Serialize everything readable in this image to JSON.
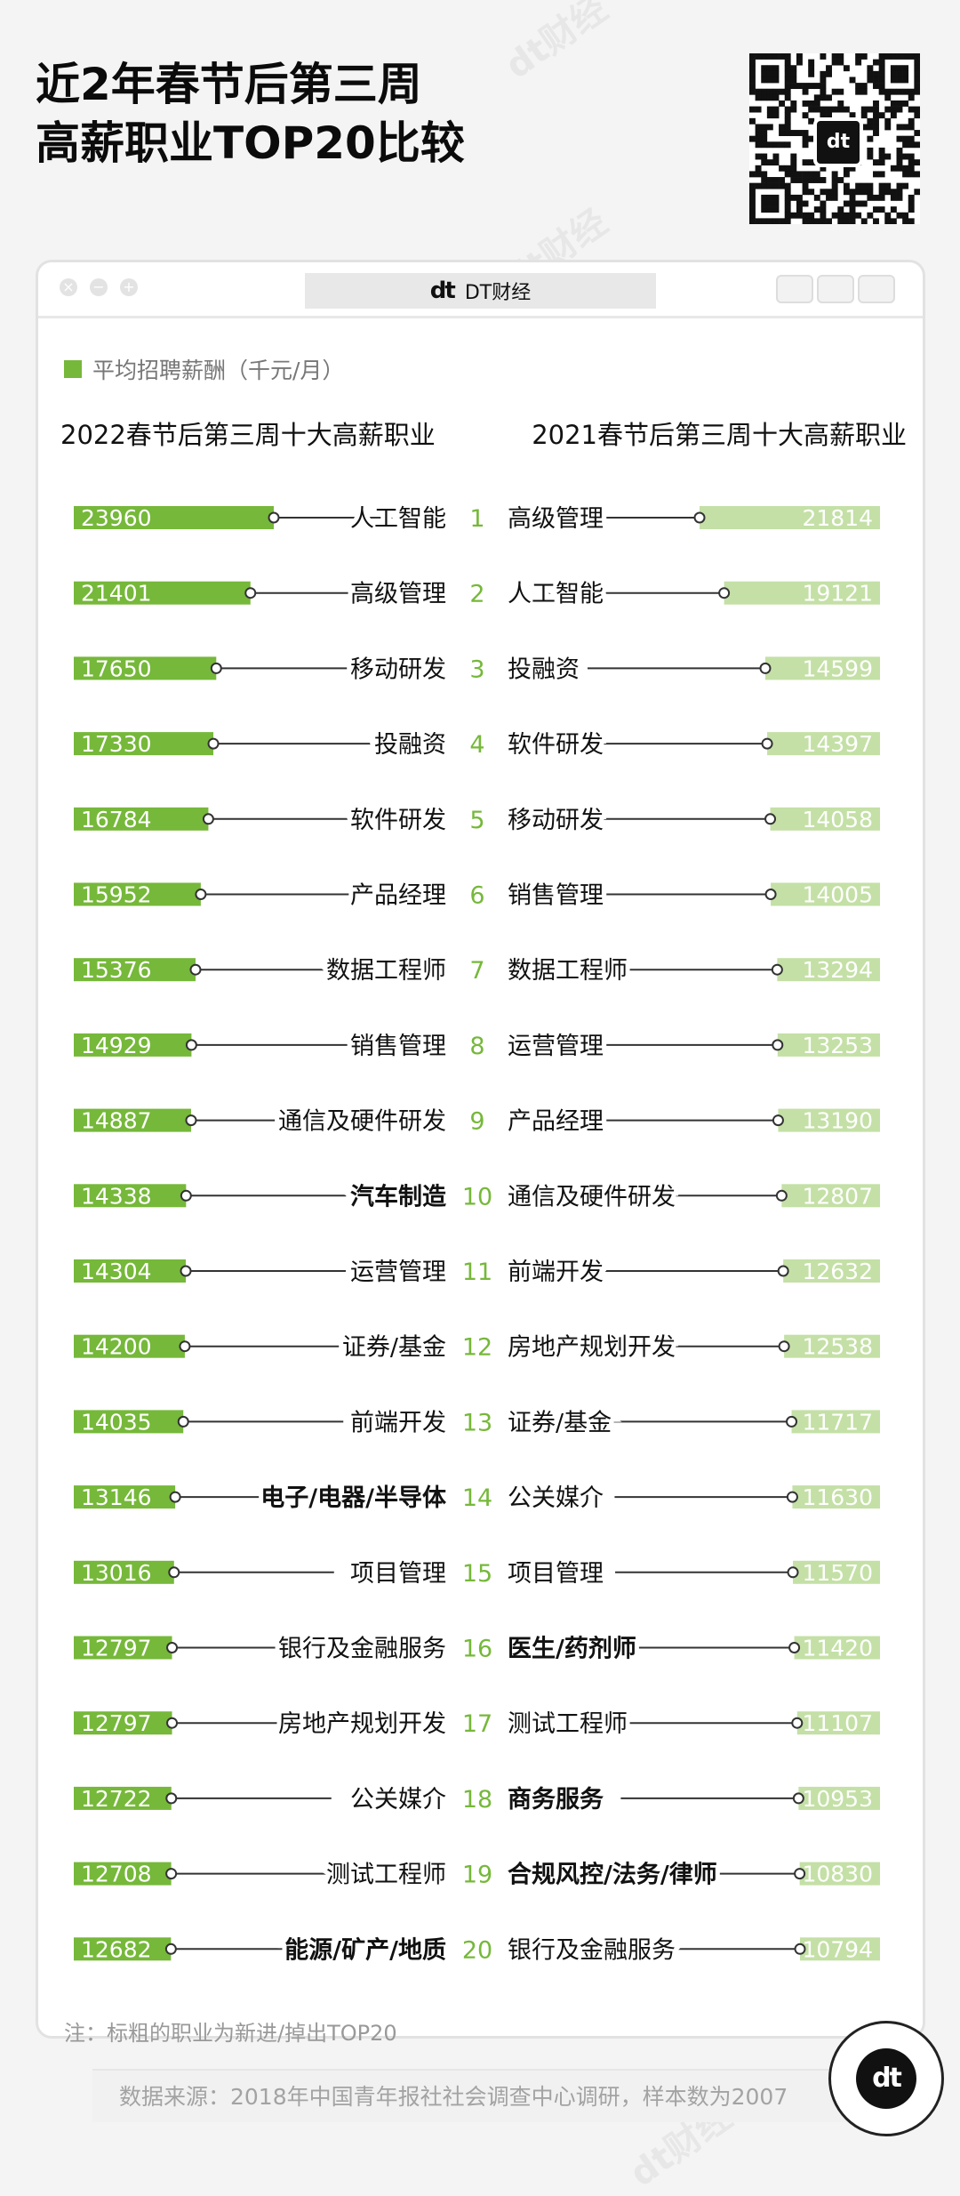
{
  "header": {
    "title_line1": "近2年春节后第三周",
    "title_line2": "高薪职业TOP20比较"
  },
  "brand": {
    "logo_text": "dt",
    "name": "DT财经"
  },
  "watermark": "dt财经",
  "legend": {
    "label": "平均招聘薪酬（千元/月）"
  },
  "footnote": "注：标粗的职业为新进/掉出TOP20",
  "source": "数据来源：2018年中国青年报社社会调查中心调研，样本数为2007",
  "colors": {
    "left_bar": "#76b83a",
    "right_bar": "#c4e0a6",
    "rank": "#76b83a"
  },
  "chart_data": {
    "type": "bar",
    "title": "近2年春节后第三周高薪职业TOP20比较",
    "unit": "平均招聘薪酬（千元/月）",
    "ranks": [
      1,
      2,
      3,
      4,
      5,
      6,
      7,
      8,
      9,
      10,
      11,
      12,
      13,
      14,
      15,
      16,
      17,
      18,
      19,
      20
    ],
    "left": {
      "name": "2022春节后第三周十大高薪职业",
      "items": [
        {
          "label": "人工智能",
          "value": 23960,
          "bold": false
        },
        {
          "label": "高级管理",
          "value": 21401,
          "bold": false
        },
        {
          "label": "移动研发",
          "value": 17650,
          "bold": false
        },
        {
          "label": "投融资",
          "value": 17330,
          "bold": false
        },
        {
          "label": "软件研发",
          "value": 16784,
          "bold": false
        },
        {
          "label": "产品经理",
          "value": 15952,
          "bold": false
        },
        {
          "label": "数据工程师",
          "value": 15376,
          "bold": false
        },
        {
          "label": "销售管理",
          "value": 14929,
          "bold": false
        },
        {
          "label": "通信及硬件研发",
          "value": 14887,
          "bold": false
        },
        {
          "label": "汽车制造",
          "value": 14338,
          "bold": true
        },
        {
          "label": "运营管理",
          "value": 14304,
          "bold": false
        },
        {
          "label": "证券/基金",
          "value": 14200,
          "bold": false
        },
        {
          "label": "前端开发",
          "value": 14035,
          "bold": false
        },
        {
          "label": "电子/电器/半导体",
          "value": 13146,
          "bold": true
        },
        {
          "label": "项目管理",
          "value": 13016,
          "bold": false
        },
        {
          "label": "银行及金融服务",
          "value": 12797,
          "bold": false
        },
        {
          "label": "房地产规划开发",
          "value": 12797,
          "bold": false
        },
        {
          "label": "公关媒介",
          "value": 12722,
          "bold": false
        },
        {
          "label": "测试工程师",
          "value": 12708,
          "bold": false
        },
        {
          "label": "能源/矿产/地质",
          "value": 12682,
          "bold": true
        }
      ]
    },
    "right": {
      "name": "2021春节后第三周十大高薪职业",
      "items": [
        {
          "label": "高级管理",
          "value": 21814,
          "bold": false
        },
        {
          "label": "人工智能",
          "value": 19121,
          "bold": false
        },
        {
          "label": "投融资",
          "value": 14599,
          "bold": false
        },
        {
          "label": "软件研发",
          "value": 14397,
          "bold": false
        },
        {
          "label": "移动研发",
          "value": 14058,
          "bold": false
        },
        {
          "label": "销售管理",
          "value": 14005,
          "bold": false
        },
        {
          "label": "数据工程师",
          "value": 13294,
          "bold": false
        },
        {
          "label": "运营管理",
          "value": 13253,
          "bold": false
        },
        {
          "label": "产品经理",
          "value": 13190,
          "bold": false
        },
        {
          "label": "通信及硬件研发",
          "value": 12807,
          "bold": false
        },
        {
          "label": "前端开发",
          "value": 12632,
          "bold": false
        },
        {
          "label": "房地产规划开发",
          "value": 12538,
          "bold": false
        },
        {
          "label": "证券/基金",
          "value": 11717,
          "bold": false
        },
        {
          "label": "公关媒介",
          "value": 11630,
          "bold": false
        },
        {
          "label": "项目管理",
          "value": 11570,
          "bold": false
        },
        {
          "label": "医生/药剂师",
          "value": 11420,
          "bold": true
        },
        {
          "label": "测试工程师",
          "value": 11107,
          "bold": false
        },
        {
          "label": "商务服务",
          "value": 10953,
          "bold": true
        },
        {
          "label": "合规风控/法务/律师",
          "value": 10830,
          "bold": true
        },
        {
          "label": "银行及金融服务",
          "value": 10794,
          "bold": false
        }
      ]
    }
  }
}
